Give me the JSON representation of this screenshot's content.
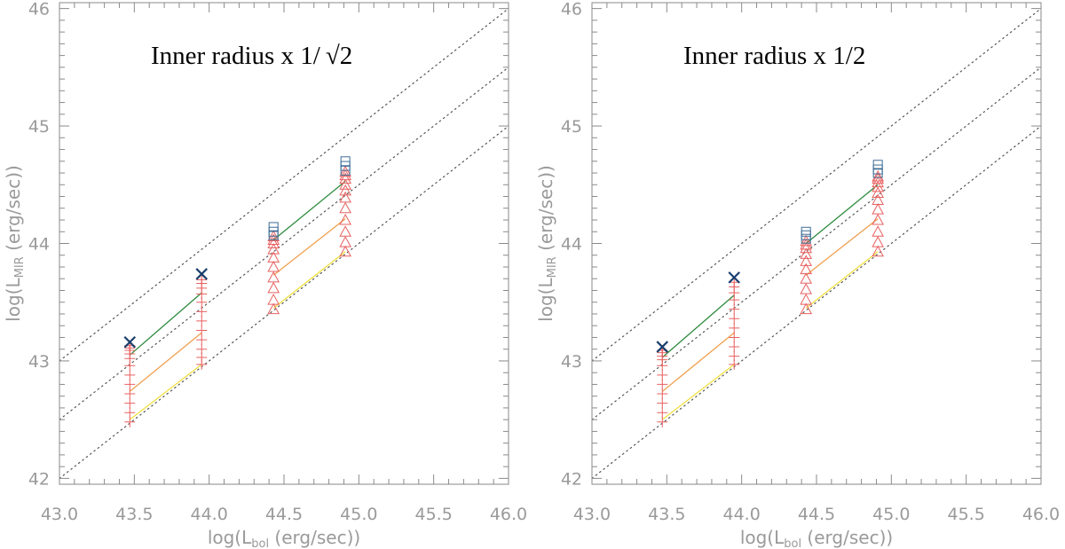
{
  "chart_data": [
    {
      "type": "scatter",
      "title": "Inner radius x 1/",
      "title_sqrt": "√2",
      "xlabel": {
        "prefix": "log(L",
        "sub": "bol",
        "suffix": " (erg/sec))"
      },
      "ylabel": {
        "prefix": "log(L",
        "sub": "MIR",
        "suffix": " (erg/sec))"
      },
      "xlim": [
        43.0,
        46.0
      ],
      "ylim": [
        41.95,
        46.05
      ],
      "xticks": [
        "43.0",
        "43.5",
        "44.0",
        "44.5",
        "45.0",
        "45.5",
        "46.0"
      ],
      "yticks": [
        "42",
        "43",
        "44",
        "45",
        "46"
      ],
      "reference_lines": [
        {
          "style": "dotted",
          "intercept": 0.0
        },
        {
          "style": "dotted",
          "intercept": -0.5
        },
        {
          "style": "dotted",
          "intercept": -1.0
        }
      ],
      "series": [
        {
          "name": "green fit",
          "type": "line",
          "color": "#2e8b3e",
          "x": [
            43.47,
            43.95,
            44.43,
            44.91
          ],
          "y": [
            43.05,
            43.58,
            44.03,
            44.53
          ]
        },
        {
          "name": "orange fit",
          "type": "line",
          "color": "#f0a050",
          "x": [
            43.47,
            43.95,
            44.43,
            44.91
          ],
          "y": [
            42.74,
            43.24,
            43.73,
            44.21
          ]
        },
        {
          "name": "yellow fit",
          "type": "line",
          "color": "#f0e040",
          "x": [
            43.47,
            43.95,
            44.43,
            44.91
          ],
          "y": [
            42.5,
            42.97,
            43.45,
            43.93
          ]
        },
        {
          "name": "plus markers",
          "type": "scatter",
          "marker": "plus",
          "color": "#e86060",
          "x": [
            43.47,
            43.47,
            43.47,
            43.47,
            43.47,
            43.47,
            43.47,
            43.47,
            43.47,
            43.47,
            43.47,
            43.47,
            43.95,
            43.95,
            43.95,
            43.95,
            43.95,
            43.95,
            43.95,
            43.95,
            43.95,
            43.95,
            43.95,
            43.95
          ],
          "y": [
            42.48,
            42.56,
            42.64,
            42.72,
            42.8,
            42.88,
            42.96,
            43.02,
            43.06,
            43.09,
            43.11,
            43.13,
            42.97,
            43.03,
            43.1,
            43.18,
            43.26,
            43.34,
            43.42,
            43.5,
            43.57,
            43.62,
            43.66,
            43.69
          ]
        },
        {
          "name": "cross markers",
          "type": "scatter",
          "marker": "x",
          "color": "#1a3f6e",
          "x": [
            43.47,
            43.95
          ],
          "y": [
            43.16,
            43.74
          ]
        },
        {
          "name": "triangle markers",
          "type": "scatter",
          "marker": "triangle",
          "color": "#e86060",
          "x": [
            44.43,
            44.43,
            44.43,
            44.43,
            44.43,
            44.43,
            44.43,
            44.43,
            44.43,
            44.43,
            44.91,
            44.91,
            44.91,
            44.91,
            44.91,
            44.91,
            44.91,
            44.91,
            44.91,
            44.91,
            44.91
          ],
          "y": [
            43.44,
            43.52,
            43.62,
            43.71,
            43.8,
            43.88,
            43.95,
            44.0,
            44.03,
            44.06,
            43.93,
            44.01,
            44.1,
            44.2,
            44.3,
            44.39,
            44.45,
            44.5,
            44.55,
            44.58,
            44.61
          ]
        },
        {
          "name": "square markers",
          "type": "scatter",
          "marker": "square",
          "color": "#3d6c96",
          "x": [
            44.43,
            44.43,
            44.43,
            44.91,
            44.91,
            44.91
          ],
          "y": [
            44.07,
            44.1,
            44.14,
            44.62,
            44.66,
            44.7
          ]
        }
      ]
    },
    {
      "type": "scatter",
      "title": "Inner radius x 1/2",
      "title_sqrt": "",
      "xlabel": {
        "prefix": "log(L",
        "sub": "bol",
        "suffix": " (erg/sec))"
      },
      "ylabel": {
        "prefix": "log(L",
        "sub": "MIR",
        "suffix": " (erg/sec))"
      },
      "xlim": [
        43.0,
        46.0
      ],
      "ylim": [
        41.95,
        46.05
      ],
      "xticks": [
        "43.0",
        "43.5",
        "44.0",
        "44.5",
        "45.0",
        "45.5",
        "46.0"
      ],
      "yticks": [
        "42",
        "43",
        "44",
        "45",
        "46"
      ],
      "reference_lines": [
        {
          "style": "dotted",
          "intercept": 0.0
        },
        {
          "style": "dotted",
          "intercept": -0.5
        },
        {
          "style": "dotted",
          "intercept": -1.0
        }
      ],
      "series": [
        {
          "name": "green fit",
          "type": "line",
          "color": "#2e8b3e",
          "x": [
            43.47,
            43.95,
            44.43,
            44.91
          ],
          "y": [
            43.03,
            43.56,
            44.0,
            44.5
          ]
        },
        {
          "name": "orange fit",
          "type": "line",
          "color": "#f0a050",
          "x": [
            43.47,
            43.95,
            44.43,
            44.91
          ],
          "y": [
            42.74,
            43.24,
            43.73,
            44.21
          ]
        },
        {
          "name": "yellow fit",
          "type": "line",
          "color": "#f0e040",
          "x": [
            43.47,
            43.95,
            44.43,
            44.91
          ],
          "y": [
            42.5,
            42.97,
            43.45,
            43.93
          ]
        },
        {
          "name": "plus markers",
          "type": "scatter",
          "marker": "plus",
          "color": "#e86060",
          "x": [
            43.47,
            43.47,
            43.47,
            43.47,
            43.47,
            43.47,
            43.47,
            43.47,
            43.47,
            43.47,
            43.47,
            43.95,
            43.95,
            43.95,
            43.95,
            43.95,
            43.95,
            43.95,
            43.95,
            43.95,
            43.95,
            43.95
          ],
          "y": [
            42.48,
            42.56,
            42.64,
            42.72,
            42.8,
            42.88,
            42.96,
            43.01,
            43.04,
            43.07,
            43.09,
            42.97,
            43.04,
            43.12,
            43.2,
            43.28,
            43.36,
            43.44,
            43.52,
            43.58,
            43.63,
            43.67
          ]
        },
        {
          "name": "cross markers",
          "type": "scatter",
          "marker": "x",
          "color": "#1a3f6e",
          "x": [
            43.47,
            43.95
          ],
          "y": [
            43.12,
            43.71
          ]
        },
        {
          "name": "triangle markers",
          "type": "scatter",
          "marker": "triangle",
          "color": "#e86060",
          "x": [
            44.43,
            44.43,
            44.43,
            44.43,
            44.43,
            44.43,
            44.43,
            44.43,
            44.43,
            44.43,
            44.91,
            44.91,
            44.91,
            44.91,
            44.91,
            44.91,
            44.91,
            44.91,
            44.91,
            44.91,
            44.91
          ],
          "y": [
            43.44,
            43.52,
            43.61,
            43.7,
            43.78,
            43.85,
            43.91,
            43.96,
            43.99,
            44.02,
            43.93,
            44.01,
            44.1,
            44.2,
            44.29,
            44.37,
            44.43,
            44.48,
            44.52,
            44.55,
            44.57
          ]
        },
        {
          "name": "square markers",
          "type": "scatter",
          "marker": "square",
          "color": "#3d6c96",
          "x": [
            44.43,
            44.43,
            44.43,
            44.91,
            44.91,
            44.91
          ],
          "y": [
            44.04,
            44.07,
            44.1,
            44.6,
            44.63,
            44.67
          ]
        }
      ]
    }
  ]
}
